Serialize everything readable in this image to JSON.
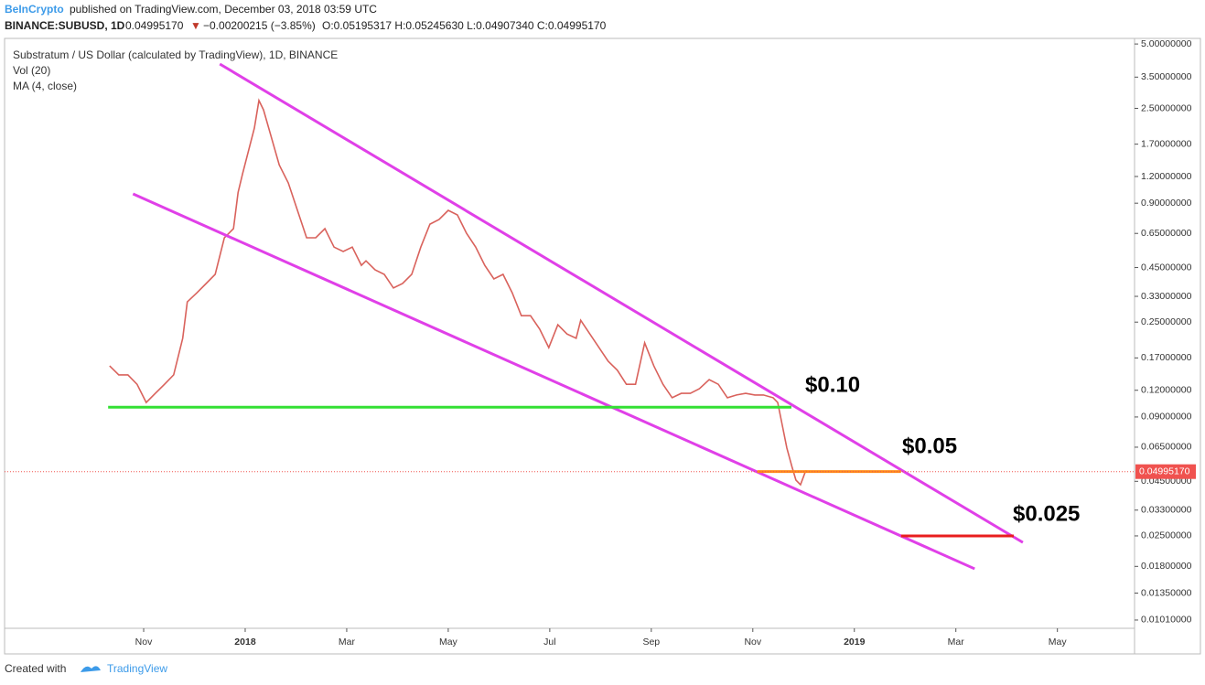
{
  "header": {
    "publisher": "BeInCrypto",
    "published": "published on TradingView.com, December 03, 2018 03:59 UTC",
    "symbol": "BINANCE:SUBUSD, 1D",
    "last": "0.04995170",
    "arrow": "▼",
    "change": "−0.00200215 (−3.85%)",
    "ohlc": "O:0.05195317 H:0.05245630 L:0.04907340 C:0.04995170"
  },
  "legend": [
    "Substratum / US Dollar (calculated by TradingView), 1D, BINANCE",
    "Vol (20)",
    "MA (4, close)"
  ],
  "footer": {
    "created": "Created with",
    "brand": "TradingView"
  },
  "chart_data": {
    "type": "line",
    "log_scale": true,
    "series": [
      {
        "name": "SUBUSD",
        "color": "#d9625c",
        "x": [
          0.33,
          0.51,
          0.69,
          0.87,
          1.05,
          1.23,
          1.41,
          1.59,
          1.77,
          1.86,
          2.05,
          2.23,
          2.41,
          2.59,
          2.77,
          2.86,
          2.95,
          3.04,
          3.18,
          3.27,
          3.36,
          3.49,
          3.67,
          3.85,
          4.03,
          4.21,
          4.39,
          4.57,
          4.75,
          4.93,
          5.11,
          5.29,
          5.38,
          5.56,
          5.74,
          5.92,
          6.1,
          6.28,
          6.46,
          6.64,
          6.82,
          7.0,
          7.18,
          7.36,
          7.54,
          7.72,
          7.9,
          8.08,
          8.26,
          8.44,
          8.62,
          8.8,
          8.98,
          9.16,
          9.34,
          9.52,
          9.61,
          9.79,
          9.97,
          10.15,
          10.33,
          10.51,
          10.69,
          10.87,
          11.05,
          11.23,
          11.41,
          11.59,
          11.77,
          11.95,
          12.14,
          12.32,
          12.5,
          12.68,
          12.86,
          13.04,
          13.21,
          13.4,
          13.49,
          13.58,
          13.67,
          13.77,
          13.85,
          13.94,
          14.04,
          14.14
        ],
        "values": [
          0.156,
          0.1416,
          0.1416,
          0.128,
          0.1052,
          0.1161,
          0.128,
          0.1416,
          0.21,
          0.311,
          0.343,
          0.379,
          0.418,
          0.62,
          0.684,
          1.01,
          1.24,
          1.5,
          2.02,
          2.72,
          2.46,
          1.92,
          1.36,
          1.12,
          0.833,
          0.62,
          0.62,
          0.684,
          0.561,
          0.535,
          0.561,
          0.461,
          0.484,
          0.439,
          0.418,
          0.361,
          0.379,
          0.418,
          0.561,
          0.718,
          0.755,
          0.833,
          0.793,
          0.651,
          0.561,
          0.461,
          0.398,
          0.418,
          0.343,
          0.268,
          0.268,
          0.232,
          0.19,
          0.243,
          0.22,
          0.21,
          0.255,
          0.22,
          0.19,
          0.164,
          0.149,
          0.128,
          0.128,
          0.2,
          0.156,
          0.128,
          0.1107,
          0.1161,
          0.1161,
          0.122,
          0.1346,
          0.128,
          0.1107,
          0.114,
          0.1161,
          0.114,
          0.114,
          0.1107,
          0.1052,
          0.0823,
          0.0644,
          0.0528,
          0.0456,
          0.0434,
          0.0503,
          0.04995
        ]
      }
    ],
    "lines": [
      {
        "color": "#e040e8",
        "x": [
          2.5,
          18.32
        ],
        "y": [
          4.03,
          0.0233
        ]
      },
      {
        "color": "#e040e8",
        "x": [
          0.79,
          17.37
        ],
        "y": [
          0.995,
          0.01754
        ]
      },
      {
        "color": "#33e033",
        "x": [
          0.3,
          13.76
        ],
        "y": [
          0.1,
          0.1
        ]
      },
      {
        "color": "#ff8c1a",
        "x": [
          13.09,
          15.92
        ],
        "y": [
          0.05,
          0.05
        ]
      },
      {
        "color": "#e81e1e",
        "x": [
          15.92,
          18.14
        ],
        "y": [
          0.025,
          0.025
        ]
      }
    ],
    "annotations": [
      "$0.10",
      "$0.05",
      "$0.025"
    ],
    "last_price": {
      "value": 0.0499517,
      "label": "0.04995170",
      "color": "#f0524f"
    },
    "xlim": [
      -1.74,
      20.52
    ],
    "xticks": [
      {
        "value": 1,
        "label": "Nov"
      },
      {
        "value": 3,
        "label": "2018"
      },
      {
        "value": 5,
        "label": "Mar"
      },
      {
        "value": 7,
        "label": "May"
      },
      {
        "value": 9,
        "label": "Jul"
      },
      {
        "value": 11,
        "label": "Sep"
      },
      {
        "value": 13,
        "label": "Nov"
      },
      {
        "value": 15,
        "label": "2019"
      },
      {
        "value": 17,
        "label": "Mar"
      },
      {
        "value": 19,
        "label": "May"
      }
    ],
    "ylim": [
      0.00924,
      5.31
    ],
    "yticks": [
      {
        "value": 5,
        "label": "5.00000000"
      },
      {
        "value": 3.5,
        "label": "3.50000000"
      },
      {
        "value": 2.5,
        "label": "2.50000000"
      },
      {
        "value": 1.7,
        "label": "1.70000000"
      },
      {
        "value": 1.2,
        "label": "1.20000000"
      },
      {
        "value": 0.9,
        "label": "0.90000000"
      },
      {
        "value": 0.65,
        "label": "0.65000000"
      },
      {
        "value": 0.45,
        "label": "0.45000000"
      },
      {
        "value": 0.33,
        "label": "0.33000000"
      },
      {
        "value": 0.25,
        "label": "0.25000000"
      },
      {
        "value": 0.17,
        "label": "0.17000000"
      },
      {
        "value": 0.12,
        "label": "0.12000000"
      },
      {
        "value": 0.09,
        "label": "0.09000000"
      },
      {
        "value": 0.065,
        "label": "0.06500000"
      },
      {
        "value": 0.045,
        "label": "0.04500000"
      },
      {
        "value": 0.033,
        "label": "0.03300000"
      },
      {
        "value": 0.025,
        "label": "0.02500000"
      },
      {
        "value": 0.018,
        "label": "0.01800000"
      },
      {
        "value": 0.0135,
        "label": "0.01350000"
      },
      {
        "value": 0.0101,
        "label": "0.01010000"
      }
    ]
  }
}
